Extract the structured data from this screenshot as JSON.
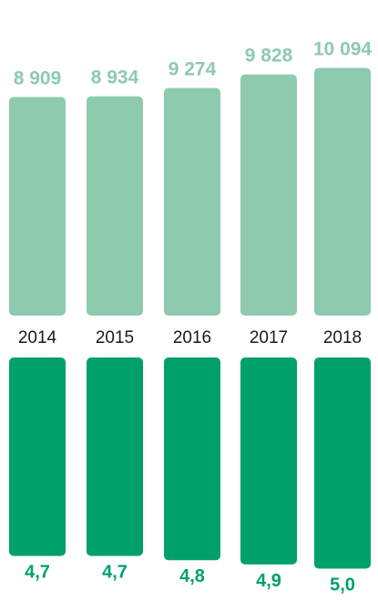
{
  "chart_data": [
    {
      "type": "bar",
      "categories": [
        "2014",
        "2015",
        "2016",
        "2017",
        "2018"
      ],
      "values": [
        8909,
        8934,
        9274,
        9828,
        10094
      ],
      "value_labels": [
        "8 909",
        "8 934",
        "9 274",
        "9 828",
        "10 094"
      ],
      "title": "",
      "xlabel": "",
      "ylabel": "",
      "grid": false,
      "color": "#8dcaae"
    },
    {
      "type": "bar",
      "orientation": "downward",
      "categories": [
        "2014",
        "2015",
        "2016",
        "2017",
        "2018"
      ],
      "values": [
        4.7,
        4.7,
        4.8,
        4.9,
        5.0
      ],
      "value_labels": [
        "4,7",
        "4,7",
        "4,8",
        "4,9",
        "5,0"
      ],
      "title": "",
      "xlabel": "",
      "ylabel": "",
      "grid": false,
      "color": "#00a06b"
    }
  ]
}
